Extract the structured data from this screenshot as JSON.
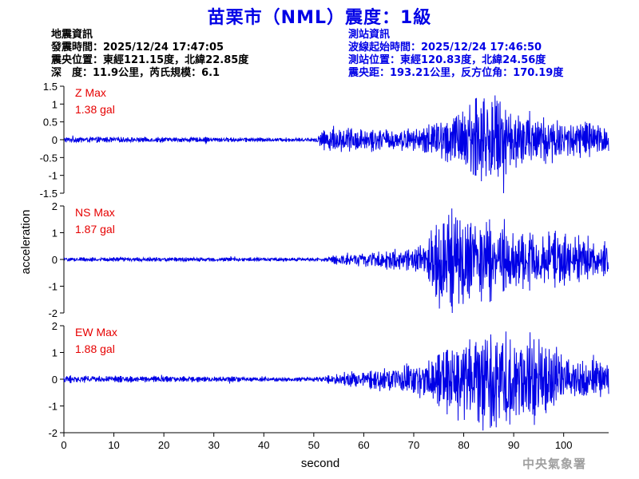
{
  "title": "苗栗市（NML）震度：1級",
  "quake_info": {
    "heading": "地震資訊",
    "time": "發震時間：2025/12/24 17:47:05",
    "location": "震央位置：東經121.15度，北緯22.85度",
    "depth_magnitude": "深　度：11.9公里，芮氏規模：6.1"
  },
  "station_info": {
    "heading": "測站資訊",
    "wave_start": "波線起始時間：2025/12/24 17:46:50",
    "location": "測站位置：東經120.83度，北緯24.56度",
    "distance": "震央距：193.21公里，反方位角：170.19度"
  },
  "watermark": "中央氣象署",
  "colors": {
    "title": "#0000e6",
    "trace": "#0000e6",
    "max_label": "#e60000",
    "axis": "#000000"
  },
  "chart_data": [
    {
      "type": "line",
      "component": "Z",
      "max_label": "Z Max",
      "max_value": "1.38 gal",
      "xlim": [
        0,
        109
      ],
      "ylim": [
        -1.5,
        1.5
      ],
      "yticks": [
        "1.5",
        "1",
        "0.5",
        "0",
        "-0.5",
        "-1",
        "-1.5"
      ],
      "envelope": [
        {
          "t": 0,
          "amp": 0.08
        },
        {
          "t": 50,
          "amp": 0.05
        },
        {
          "t": 53,
          "amp": 0.35
        },
        {
          "t": 60,
          "amp": 0.3
        },
        {
          "t": 70,
          "amp": 0.28
        },
        {
          "t": 76,
          "amp": 0.6
        },
        {
          "t": 80,
          "amp": 0.85
        },
        {
          "t": 84,
          "amp": 1.3
        },
        {
          "t": 90,
          "amp": 0.85
        },
        {
          "t": 100,
          "amp": 0.55
        },
        {
          "t": 109,
          "amp": 0.4
        }
      ]
    },
    {
      "type": "line",
      "component": "NS",
      "max_label": "NS Max",
      "max_value": "1.87 gal",
      "xlim": [
        0,
        109
      ],
      "ylim": [
        -2,
        2
      ],
      "yticks": [
        "2",
        "1",
        "0",
        "-1",
        "-2"
      ],
      "envelope": [
        {
          "t": 0,
          "amp": 0.08
        },
        {
          "t": 52,
          "amp": 0.06
        },
        {
          "t": 55,
          "amp": 0.2
        },
        {
          "t": 65,
          "amp": 0.35
        },
        {
          "t": 72,
          "amp": 0.5
        },
        {
          "t": 75,
          "amp": 1.75
        },
        {
          "t": 80,
          "amp": 1.6
        },
        {
          "t": 86,
          "amp": 1.3
        },
        {
          "t": 95,
          "amp": 1.0
        },
        {
          "t": 109,
          "amp": 0.6
        }
      ]
    },
    {
      "type": "line",
      "component": "EW",
      "max_label": "EW Max",
      "max_value": "1.88 gal",
      "xlim": [
        0,
        109
      ],
      "ylim": [
        -2,
        2
      ],
      "yticks": [
        "2",
        "1",
        "0",
        "-1",
        "-2"
      ],
      "envelope": [
        {
          "t": 0,
          "amp": 0.12
        },
        {
          "t": 52,
          "amp": 0.08
        },
        {
          "t": 55,
          "amp": 0.25
        },
        {
          "t": 65,
          "amp": 0.4
        },
        {
          "t": 72,
          "amp": 0.7
        },
        {
          "t": 80,
          "amp": 1.4
        },
        {
          "t": 86,
          "amp": 1.85
        },
        {
          "t": 95,
          "amp": 1.4
        },
        {
          "t": 100,
          "amp": 0.9
        },
        {
          "t": 109,
          "amp": 0.5
        }
      ]
    }
  ],
  "x_axis": {
    "label": "second",
    "ticks": [
      "0",
      "10",
      "20",
      "30",
      "40",
      "50",
      "60",
      "70",
      "80",
      "90",
      "100"
    ]
  },
  "y_axis": {
    "label": "acceleration"
  }
}
